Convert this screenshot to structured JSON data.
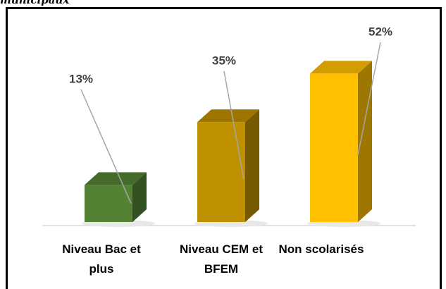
{
  "chart_data": {
    "type": "bar3d",
    "title": "municipaux",
    "categories": [
      "Niveau Bac et plus",
      "Niveau CEM et BFEM",
      "Non scolarisés"
    ],
    "values": [
      13,
      35,
      52
    ],
    "value_labels": [
      "13%",
      "35%",
      "52%"
    ],
    "colors": [
      "#548235",
      "#bf9000",
      "#ffc000"
    ]
  }
}
